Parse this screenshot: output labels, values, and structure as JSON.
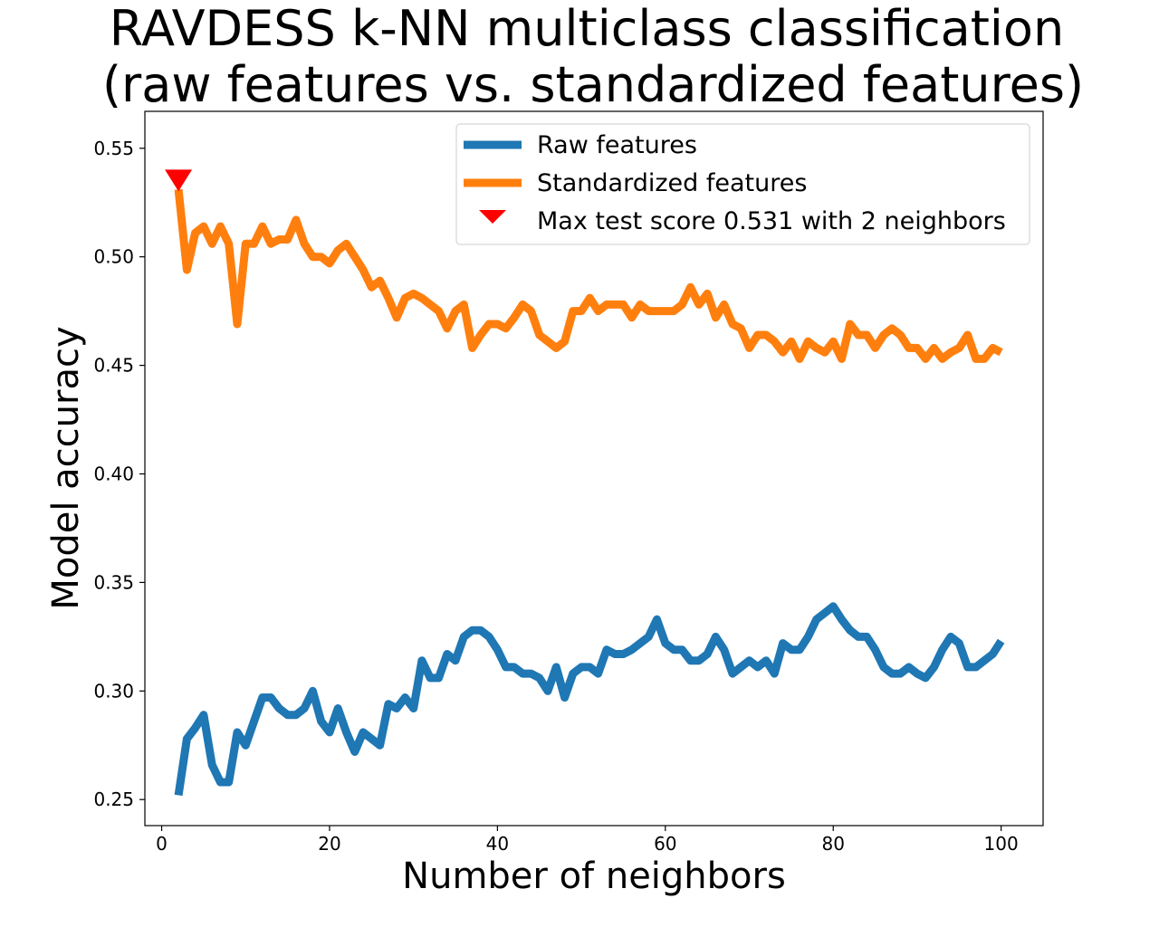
{
  "chart_data": {
    "type": "line",
    "title": "RAVDESS k-NN multiclass classification",
    "subtitle": "(raw features vs. standardized features)",
    "xlabel": "Number of neighbors",
    "ylabel": "Model accuracy",
    "xlim": [
      -2,
      105
    ],
    "ylim": [
      0.238,
      0.567
    ],
    "xticks": [
      0,
      20,
      40,
      60,
      80,
      100
    ],
    "yticks": [
      0.25,
      0.3,
      0.35,
      0.4,
      0.45,
      0.5,
      0.55
    ],
    "ytick_labels": [
      "0.25",
      "0.30",
      "0.35",
      "0.40",
      "0.45",
      "0.50",
      "0.55"
    ],
    "grid": false,
    "legend_position": "top-right",
    "x": [
      2,
      3,
      4,
      5,
      6,
      7,
      8,
      9,
      10,
      11,
      12,
      13,
      14,
      15,
      16,
      17,
      18,
      19,
      20,
      21,
      22,
      23,
      24,
      25,
      26,
      27,
      28,
      29,
      30,
      31,
      32,
      33,
      34,
      35,
      36,
      37,
      38,
      39,
      40,
      41,
      42,
      43,
      44,
      45,
      46,
      47,
      48,
      49,
      50,
      51,
      52,
      53,
      54,
      55,
      56,
      57,
      58,
      59,
      60,
      61,
      62,
      63,
      64,
      65,
      66,
      67,
      68,
      69,
      70,
      71,
      72,
      73,
      74,
      75,
      76,
      77,
      78,
      79,
      80,
      81,
      82,
      83,
      84,
      85,
      86,
      87,
      88,
      89,
      90,
      91,
      92,
      93,
      94,
      95,
      96,
      97,
      98,
      99,
      100
    ],
    "series": [
      {
        "name": "Raw features",
        "color": "#1f77b4",
        "values": [
          0.252,
          0.278,
          0.283,
          0.289,
          0.266,
          0.258,
          0.258,
          0.281,
          0.275,
          0.286,
          0.297,
          0.297,
          0.292,
          0.289,
          0.289,
          0.292,
          0.3,
          0.286,
          0.281,
          0.292,
          0.281,
          0.272,
          0.281,
          0.278,
          0.275,
          0.294,
          0.292,
          0.297,
          0.292,
          0.314,
          0.306,
          0.306,
          0.317,
          0.314,
          0.325,
          0.328,
          0.328,
          0.325,
          0.319,
          0.311,
          0.311,
          0.308,
          0.308,
          0.306,
          0.3,
          0.311,
          0.297,
          0.308,
          0.311,
          0.311,
          0.308,
          0.319,
          0.317,
          0.317,
          0.319,
          0.322,
          0.325,
          0.333,
          0.322,
          0.319,
          0.319,
          0.314,
          0.314,
          0.317,
          0.325,
          0.319,
          0.308,
          0.311,
          0.314,
          0.311,
          0.314,
          0.308,
          0.322,
          0.319,
          0.319,
          0.325,
          0.333,
          0.336,
          0.339,
          0.333,
          0.328,
          0.325,
          0.325,
          0.319,
          0.311,
          0.308,
          0.308,
          0.311,
          0.308,
          0.306,
          0.311,
          0.319,
          0.325,
          0.322,
          0.311,
          0.311,
          0.314,
          0.317,
          0.323
        ]
      },
      {
        "name": "Standardized features",
        "color": "#ff7f0e",
        "values": [
          0.531,
          0.494,
          0.511,
          0.514,
          0.506,
          0.514,
          0.506,
          0.469,
          0.506,
          0.506,
          0.514,
          0.506,
          0.508,
          0.508,
          0.517,
          0.506,
          0.5,
          0.5,
          0.497,
          0.503,
          0.506,
          0.5,
          0.494,
          0.486,
          0.489,
          0.481,
          0.472,
          0.481,
          0.483,
          0.481,
          0.478,
          0.475,
          0.467,
          0.475,
          0.478,
          0.458,
          0.464,
          0.469,
          0.469,
          0.467,
          0.472,
          0.478,
          0.475,
          0.464,
          0.461,
          0.458,
          0.461,
          0.475,
          0.475,
          0.481,
          0.475,
          0.478,
          0.478,
          0.478,
          0.472,
          0.478,
          0.475,
          0.475,
          0.475,
          0.475,
          0.478,
          0.486,
          0.478,
          0.483,
          0.472,
          0.478,
          0.469,
          0.467,
          0.458,
          0.464,
          0.464,
          0.461,
          0.456,
          0.461,
          0.453,
          0.461,
          0.458,
          0.456,
          0.461,
          0.453,
          0.469,
          0.464,
          0.464,
          0.458,
          0.464,
          0.467,
          0.464,
          0.458,
          0.458,
          0.453,
          0.458,
          0.453,
          0.456,
          0.458,
          0.464,
          0.453,
          0.453,
          0.458,
          0.456
        ]
      }
    ],
    "marker": {
      "name": "Max test score 0.531 with 2 neighbors",
      "x": 2,
      "y": 0.536,
      "color": "#ff0000",
      "shape": "triangle-down"
    }
  }
}
